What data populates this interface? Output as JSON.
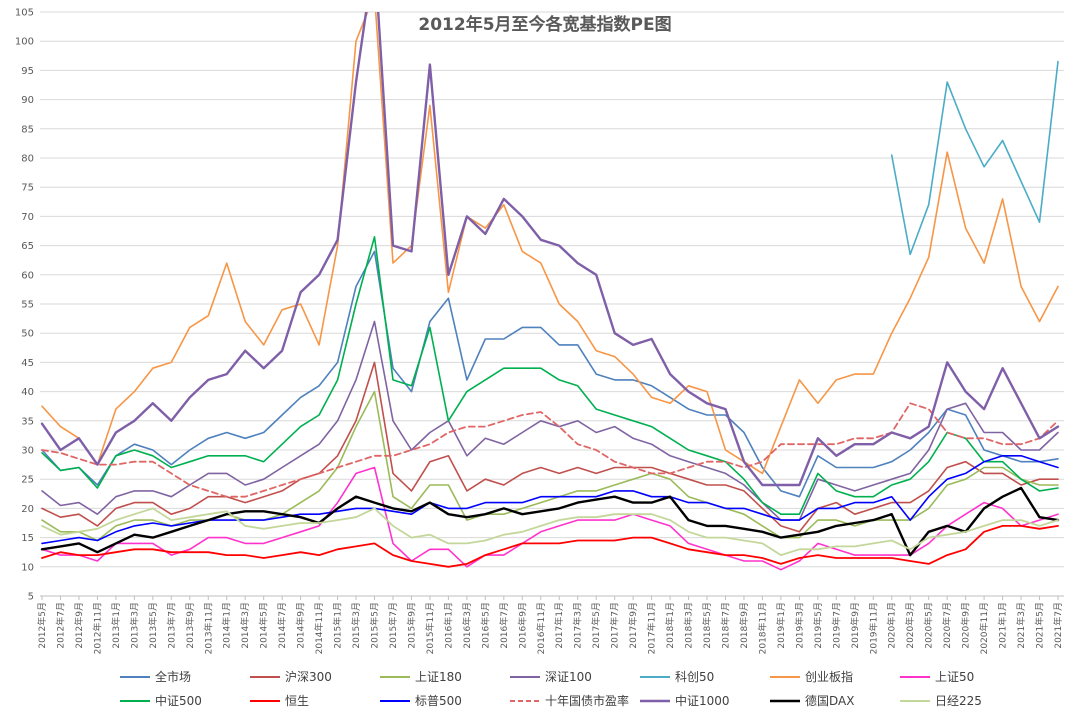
{
  "chart_data": {
    "type": "line",
    "title": "2012年5月至今各宽基指数PE图",
    "ylim": [
      5,
      105
    ],
    "yticks": [
      5,
      10,
      15,
      20,
      25,
      30,
      35,
      40,
      45,
      50,
      55,
      60,
      65,
      70,
      75,
      80,
      85,
      90,
      95,
      100,
      105
    ],
    "grid": true,
    "legend_position": "bottom",
    "x": [
      "2012年5月",
      "2012年7月",
      "2012年9月",
      "2012年11月",
      "2013年1月",
      "2013年3月",
      "2013年5月",
      "2013年7月",
      "2013年9月",
      "2013年11月",
      "2014年1月",
      "2014年3月",
      "2014年5月",
      "2014年7月",
      "2014年9月",
      "2014年11月",
      "2015年1月",
      "2015年3月",
      "2015年5月",
      "2015年7月",
      "2015年9月",
      "2015年11月",
      "2016年1月",
      "2016年3月",
      "2016年5月",
      "2016年7月",
      "2016年9月",
      "2016年11月",
      "2017年1月",
      "2017年3月",
      "2017年5月",
      "2017年7月",
      "2017年9月",
      "2017年11月",
      "2018年1月",
      "2018年3月",
      "2018年5月",
      "2018年7月",
      "2018年9月",
      "2018年11月",
      "2019年1月",
      "2019年3月",
      "2019年5月",
      "2019年7月",
      "2019年9月",
      "2019年11月",
      "2020年1月",
      "2020年3月",
      "2020年5月",
      "2020年7月",
      "2020年9月",
      "2020年11月",
      "2021年1月",
      "2021年3月",
      "2021年5月",
      "2021年7月"
    ],
    "series": [
      {
        "name": "全市场",
        "color": "#4f81bd",
        "width": 1.6,
        "dash": "",
        "values": [
          30,
          26.5,
          27,
          24,
          29,
          31,
          30,
          27.5,
          30,
          32,
          33,
          32,
          33,
          36,
          39,
          41,
          45,
          58,
          64,
          44,
          40,
          52,
          56,
          42,
          49,
          49,
          51,
          51,
          48,
          48,
          43,
          42,
          42,
          41,
          39,
          37,
          36,
          36,
          33,
          27,
          23,
          22,
          29,
          27,
          27,
          27,
          28,
          30,
          33,
          37,
          36,
          30,
          29,
          28,
          28,
          28.5
        ]
      },
      {
        "name": "沪深300",
        "color": "#c0504d",
        "width": 1.6,
        "dash": "",
        "values": [
          20,
          18.5,
          19,
          17,
          20,
          21,
          21,
          19,
          20,
          22,
          22,
          21,
          22,
          23,
          25,
          26,
          29,
          35,
          45,
          26,
          23,
          28,
          29,
          23,
          25,
          24,
          26,
          27,
          26,
          27,
          26,
          27,
          27,
          27,
          26,
          25,
          24,
          24,
          23,
          20,
          17,
          16,
          20,
          21,
          19,
          20,
          21,
          21,
          23,
          27,
          28,
          26,
          26,
          24,
          25,
          25
        ]
      },
      {
        "name": "上证180",
        "color": "#9bbb59",
        "width": 1.6,
        "dash": "",
        "values": [
          18,
          16,
          16,
          14.5,
          17,
          18,
          18,
          17,
          18,
          18,
          19,
          18,
          18,
          19,
          21,
          23,
          27,
          34,
          40,
          22,
          20,
          24,
          24,
          18,
          19,
          19,
          20,
          21,
          22,
          23,
          23,
          24,
          25,
          26,
          25,
          22,
          21,
          20,
          19,
          17,
          15,
          15,
          18,
          18,
          17,
          18,
          18,
          18,
          20,
          24,
          25,
          27,
          27,
          25,
          24,
          24
        ]
      },
      {
        "name": "深证100",
        "color": "#8064a2",
        "width": 1.6,
        "dash": "",
        "values": [
          23,
          20.5,
          21,
          19,
          22,
          23,
          23,
          22,
          24,
          26,
          26,
          24,
          25,
          27,
          29,
          31,
          35,
          42,
          52,
          35,
          30,
          33,
          35,
          29,
          32,
          31,
          33,
          35,
          34,
          35,
          33,
          34,
          32,
          31,
          29,
          28,
          27,
          26,
          24,
          21,
          18,
          18,
          25,
          24,
          23,
          24,
          25,
          26,
          30,
          37,
          38,
          33,
          33,
          30,
          30,
          33
        ]
      },
      {
        "name": "科创50",
        "color": "#4bacc6",
        "width": 1.6,
        "dash": "",
        "values": [
          null,
          null,
          null,
          null,
          null,
          null,
          null,
          null,
          null,
          null,
          null,
          null,
          null,
          null,
          null,
          null,
          null,
          null,
          null,
          null,
          null,
          null,
          null,
          null,
          null,
          null,
          null,
          null,
          null,
          null,
          null,
          null,
          null,
          null,
          null,
          null,
          null,
          null,
          null,
          null,
          null,
          null,
          null,
          null,
          null,
          null,
          80.5,
          63.5,
          72,
          93,
          85,
          78.5,
          83,
          76,
          69,
          96.5
        ]
      },
      {
        "name": "创业板指",
        "color": "#f79646",
        "width": 1.6,
        "dash": "",
        "values": [
          37.5,
          34,
          32,
          27.5,
          37,
          40,
          44,
          45,
          51,
          53,
          62,
          52,
          48,
          54,
          55,
          48,
          65,
          100,
          108,
          62,
          65,
          89,
          57,
          70,
          68,
          72,
          64,
          62,
          55,
          52,
          47,
          46,
          43,
          39,
          38,
          41,
          40,
          30,
          28,
          26,
          34,
          42,
          38,
          42,
          43,
          43,
          50,
          56,
          63,
          81,
          68,
          62,
          73,
          58,
          52,
          58
        ]
      },
      {
        "name": "上证50",
        "color": "#ff33cc",
        "width": 1.6,
        "dash": "",
        "values": [
          13,
          12,
          12,
          11,
          14,
          14,
          14,
          12,
          13,
          15,
          15,
          14,
          14,
          15,
          16,
          17,
          21,
          26,
          27,
          14,
          11,
          13,
          13,
          10,
          12,
          12,
          14,
          16,
          17,
          18,
          18,
          18,
          19,
          18,
          17,
          14,
          13,
          12,
          11,
          11,
          9.5,
          11,
          14,
          13,
          12,
          12,
          12,
          12,
          14,
          17,
          19,
          21,
          20,
          17,
          18,
          19
        ]
      },
      {
        "name": "中证500",
        "color": "#00b050",
        "width": 1.6,
        "dash": "",
        "values": [
          29.5,
          26.5,
          27,
          23.5,
          29,
          30,
          29,
          27,
          28,
          29,
          29,
          29,
          28,
          31,
          34,
          36,
          42,
          55,
          66.5,
          42,
          41,
          51,
          35,
          40,
          42,
          44,
          44,
          44,
          42,
          41,
          37,
          36,
          35,
          34,
          32,
          30,
          29,
          28,
          25,
          21,
          19,
          19,
          26,
          23,
          22,
          22,
          24,
          25,
          28,
          33,
          32,
          28,
          28,
          25,
          23,
          23.5
        ]
      },
      {
        "name": "恒生",
        "color": "#ff0000",
        "width": 1.8,
        "dash": "",
        "values": [
          11.5,
          12.5,
          12,
          12,
          12.5,
          13,
          13,
          12.5,
          12.5,
          12.5,
          12,
          12,
          11.5,
          12,
          12.5,
          12,
          13,
          13.5,
          14,
          12,
          11,
          10.5,
          10,
          10.5,
          12,
          13,
          14,
          14,
          14,
          14.5,
          14.5,
          14.5,
          15,
          15,
          14,
          13,
          12.5,
          12,
          12,
          11.5,
          10.5,
          11.5,
          12,
          11.5,
          11.5,
          11.5,
          11.5,
          11,
          10.5,
          12,
          13,
          16,
          17,
          17,
          16.5,
          17
        ]
      },
      {
        "name": "标普500",
        "color": "#0000ff",
        "width": 1.6,
        "dash": "",
        "values": [
          14,
          14.5,
          15,
          14.5,
          16,
          17,
          17.5,
          17,
          17.5,
          18,
          18,
          18,
          18,
          18.5,
          19,
          19,
          19.5,
          20,
          20,
          19.5,
          19,
          21,
          20,
          20,
          21,
          21,
          21,
          22,
          22,
          22,
          22,
          23,
          23,
          22,
          22,
          21,
          21,
          20,
          20,
          19,
          18,
          18,
          20,
          20,
          21,
          21,
          22,
          18,
          22,
          25,
          26,
          28,
          29,
          29,
          28,
          27
        ]
      },
      {
        "name": "十年国债市盈率",
        "color": "#e06666",
        "width": 1.8,
        "dash": "6,4",
        "values": [
          30,
          29.5,
          28.5,
          27.5,
          27.5,
          28,
          28,
          26,
          24,
          23,
          22,
          22,
          23,
          24,
          25,
          26,
          27,
          28,
          29,
          29,
          30,
          31,
          33,
          34,
          34,
          35,
          36,
          36.5,
          34,
          31,
          30,
          28,
          27,
          26,
          26,
          27,
          28,
          28,
          27,
          28,
          31,
          31,
          31,
          31,
          32,
          32,
          33,
          38,
          37,
          33,
          32,
          32,
          31,
          31,
          32,
          35
        ]
      },
      {
        "name": "中证1000",
        "color": "#7f5fa8",
        "width": 2.4,
        "dash": "",
        "values": [
          34.5,
          30,
          32,
          27.5,
          33,
          35,
          38,
          35,
          39,
          42,
          43,
          47,
          44,
          47,
          57,
          60,
          66,
          93,
          115,
          65,
          64,
          96,
          60,
          70,
          67,
          73,
          70,
          66,
          65,
          62,
          60,
          50,
          48,
          49,
          43,
          40,
          38,
          37,
          28,
          24,
          24,
          24,
          32,
          29,
          31,
          31,
          33,
          32,
          34,
          45,
          40,
          37,
          44,
          38,
          32,
          34
        ]
      },
      {
        "name": "德国DAX",
        "color": "#000000",
        "width": 2.4,
        "dash": "",
        "values": [
          13,
          13.5,
          14,
          12.5,
          14,
          15.5,
          15,
          16,
          17,
          18,
          19,
          19.5,
          19.5,
          19,
          18.5,
          17.5,
          20,
          22,
          21,
          20,
          19.5,
          21,
          19,
          18.5,
          19,
          20,
          19,
          19.5,
          20,
          21,
          21.5,
          22,
          21,
          21,
          22,
          18,
          17,
          17,
          16.5,
          16,
          15,
          15.5,
          16,
          17,
          17.5,
          18,
          19,
          12,
          16,
          17,
          16,
          20,
          22,
          23.5,
          18.5,
          18
        ]
      },
      {
        "name": "日经225",
        "color": "#c4d79b",
        "width": 1.8,
        "dash": "",
        "values": [
          17,
          15.5,
          16,
          16.5,
          18,
          19,
          20,
          18,
          18.5,
          19,
          19.5,
          17,
          16.5,
          17,
          17.5,
          17.5,
          18,
          18.5,
          20,
          17,
          15,
          15.5,
          14,
          14,
          14.5,
          15.5,
          16,
          17,
          18,
          18.5,
          18.5,
          19,
          19,
          19,
          18,
          16,
          15,
          15,
          14.5,
          14,
          12,
          13,
          13,
          13.5,
          13.5,
          14,
          14.5,
          13,
          15,
          15.5,
          16,
          17,
          18,
          18,
          17,
          18
        ]
      }
    ]
  }
}
